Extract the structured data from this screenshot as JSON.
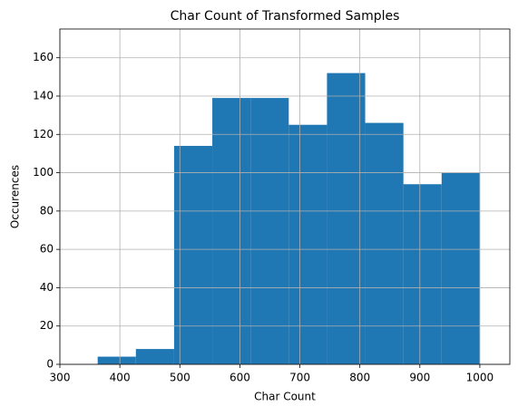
{
  "chart_data": {
    "type": "histogram",
    "title": "Char Count of Transformed Samples",
    "x_label": "Char Count",
    "y_label": "Occurences",
    "bins": [
      363,
      426.7,
      490.4,
      554.1,
      617.8,
      681.5,
      745.2,
      808.9,
      872.6,
      936.3,
      1000
    ],
    "values": [
      4,
      8,
      114,
      139,
      139,
      125,
      152,
      126,
      94,
      100
    ],
    "color": "#1f77b4",
    "xlim": [
      300,
      1050
    ],
    "xticks": [
      300,
      400,
      500,
      600,
      700,
      800,
      900,
      1000
    ],
    "ylim": [
      0,
      175
    ],
    "yticks": [
      0,
      20,
      40,
      60,
      80,
      100,
      120,
      140,
      160
    ],
    "grid": true
  }
}
